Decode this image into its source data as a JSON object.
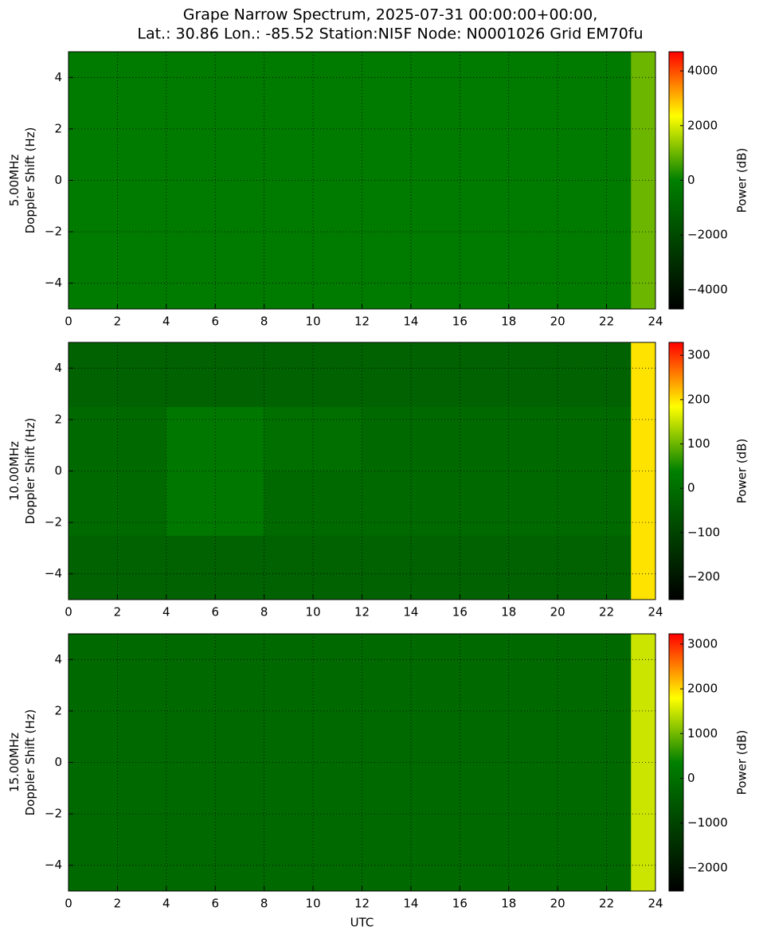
{
  "chart_data": [
    {
      "type": "heatmap",
      "title": [
        "Grape Narrow Spectrum, 2025-07-31 00:00:00+00:00,",
        "Lat.: 30.86 Lon.: -85.52 Station:NI5F Node: N0001026 Grid EM70fu"
      ],
      "ylabel": [
        "5.00MHz",
        "Doppler Shift (Hz)"
      ],
      "colorbar_label": "Power (dB)",
      "x_edges": [
        0,
        2,
        4,
        6,
        8,
        10,
        12,
        14,
        16,
        18,
        20,
        22,
        23,
        24
      ],
      "y_edges": [
        -5,
        -2.5,
        0,
        2.5,
        5
      ],
      "values": [
        [
          -200,
          -200,
          -200,
          -200,
          -200,
          -200,
          -200,
          -200,
          -200,
          -200,
          -200,
          -200,
          1000
        ],
        [
          -200,
          -200,
          -200,
          -200,
          -200,
          -200,
          -200,
          -200,
          -200,
          -200,
          -200,
          -200,
          1000
        ],
        [
          -200,
          -200,
          -200,
          -200,
          -200,
          -200,
          -200,
          -200,
          -200,
          -200,
          -200,
          -200,
          1000
        ],
        [
          -200,
          -200,
          -200,
          -200,
          -200,
          -200,
          -200,
          -200,
          -200,
          -200,
          -200,
          -200,
          1000
        ]
      ],
      "xlim": [
        0,
        24
      ],
      "ylim": [
        -5,
        5
      ],
      "xticks": [
        0,
        2,
        4,
        6,
        8,
        10,
        12,
        14,
        16,
        18,
        20,
        22,
        24
      ],
      "yticks": [
        {
          "value": -4,
          "label": "−4"
        },
        {
          "value": -2,
          "label": "−2"
        },
        0,
        2,
        4
      ],
      "clim": [
        -4700,
        4700
      ],
      "cticks": [
        {
          "value": -4000,
          "label": "−4000"
        },
        {
          "value": -2000,
          "label": "−2000"
        },
        0,
        2000,
        4000
      ],
      "colormap": [
        "#000000",
        "#008000",
        "#ffff00",
        "#ff0000"
      ],
      "colormap_stops": [
        0,
        0.5,
        0.75,
        1
      ],
      "grid": true
    },
    {
      "type": "heatmap",
      "ylabel": [
        "10.00MHz",
        "Doppler Shift (Hz)"
      ],
      "colorbar_label": "Power (dB)",
      "x_edges": [
        0,
        2,
        4,
        6,
        8,
        10,
        12,
        14,
        16,
        18,
        20,
        22,
        23,
        24
      ],
      "y_edges": [
        -5,
        -2.5,
        0,
        2.5,
        5
      ],
      "values": [
        [
          -30,
          -30,
          -30,
          -30,
          -30,
          -30,
          -30,
          -30,
          -30,
          -30,
          -30,
          -30,
          200
        ],
        [
          -10,
          -10,
          20,
          20,
          -10,
          -10,
          -10,
          -10,
          -10,
          -10,
          -10,
          -10,
          200
        ],
        [
          -10,
          -10,
          20,
          20,
          0,
          0,
          -10,
          -10,
          -10,
          -10,
          -10,
          -10,
          200
        ],
        [
          -30,
          -30,
          -30,
          -30,
          -30,
          -30,
          -30,
          -30,
          -30,
          -30,
          -30,
          -30,
          200
        ]
      ],
      "xlim": [
        0,
        24
      ],
      "ylim": [
        -5,
        5
      ],
      "xticks": [
        0,
        2,
        4,
        6,
        8,
        10,
        12,
        14,
        16,
        18,
        20,
        22,
        24
      ],
      "yticks": [
        {
          "value": -4,
          "label": "−4"
        },
        {
          "value": -2,
          "label": "−2"
        },
        0,
        2,
        4
      ],
      "clim": [
        -251,
        329
      ],
      "cticks": [
        {
          "value": -200,
          "label": "−200"
        },
        {
          "value": -100,
          "label": "−100"
        },
        0,
        100,
        200,
        300
      ],
      "colormap": [
        "#000000",
        "#008000",
        "#ffff00",
        "#ff0000"
      ],
      "colormap_stops": [
        0,
        0.5,
        0.75,
        1
      ],
      "grid": true
    },
    {
      "type": "heatmap",
      "ylabel": [
        "15.00MHz",
        "Doppler Shift (Hz)"
      ],
      "colorbar_label": "Power (dB)",
      "xlabel": "UTC",
      "x_edges": [
        0,
        2,
        4,
        6,
        8,
        10,
        12,
        14,
        16,
        18,
        20,
        22,
        23,
        24
      ],
      "y_edges": [
        -5,
        -2.5,
        0,
        2.5,
        5
      ],
      "values": [
        [
          -150,
          -150,
          -150,
          -150,
          -150,
          -150,
          -150,
          -150,
          -150,
          -150,
          -150,
          -150,
          1500
        ],
        [
          -150,
          -150,
          -150,
          -150,
          -150,
          -150,
          -150,
          -150,
          -150,
          -150,
          -150,
          -150,
          1500
        ],
        [
          -150,
          -150,
          -150,
          -150,
          -150,
          -150,
          -150,
          -150,
          -150,
          -150,
          -150,
          -150,
          1500
        ],
        [
          -150,
          -150,
          -150,
          -150,
          -150,
          -150,
          -150,
          -150,
          -150,
          -150,
          -150,
          -150,
          1500
        ]
      ],
      "xlim": [
        0,
        24
      ],
      "ylim": [
        -5,
        5
      ],
      "xticks": [
        0,
        2,
        4,
        6,
        8,
        10,
        12,
        14,
        16,
        18,
        20,
        22,
        24
      ],
      "yticks": [
        {
          "value": -4,
          "label": "−4"
        },
        {
          "value": -2,
          "label": "−2"
        },
        0,
        2,
        4
      ],
      "clim": [
        -2520,
        3230
      ],
      "cticks": [
        {
          "value": -2000,
          "label": "−2000"
        },
        {
          "value": -1000,
          "label": "−1000"
        },
        0,
        1000,
        2000,
        3000
      ],
      "colormap": [
        "#000000",
        "#008000",
        "#ffff00",
        "#ff0000"
      ],
      "colormap_stops": [
        0,
        0.5,
        0.75,
        1
      ],
      "grid": true
    }
  ]
}
